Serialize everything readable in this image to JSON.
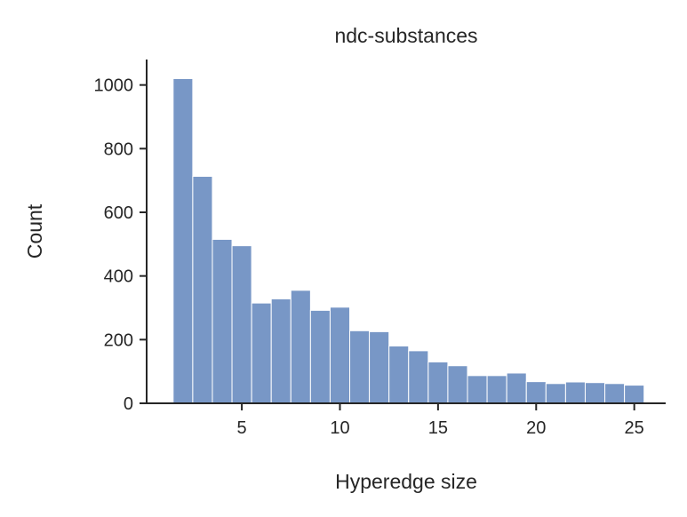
{
  "chart_data": {
    "type": "bar",
    "title": "ndc-substances",
    "xlabel": "Hyperedge size",
    "ylabel": "Count",
    "xlim": [
      0.15,
      26.6
    ],
    "ylim": [
      0,
      1080
    ],
    "xticks": [
      5,
      10,
      15,
      20,
      25
    ],
    "yticks": [
      0,
      200,
      400,
      600,
      800,
      1000
    ],
    "bin_width": 1,
    "bar_color": "#7897c6",
    "x": [
      2,
      3,
      4,
      5,
      6,
      7,
      8,
      9,
      10,
      11,
      12,
      13,
      14,
      15,
      16,
      17,
      18,
      19,
      20,
      21,
      22,
      23,
      24,
      25
    ],
    "values": [
      1020,
      713,
      515,
      495,
      315,
      328,
      355,
      292,
      302,
      228,
      225,
      180,
      165,
      130,
      118,
      87,
      87,
      95,
      68,
      62,
      67,
      65,
      62,
      57
    ],
    "grid": false,
    "legend": "none"
  }
}
